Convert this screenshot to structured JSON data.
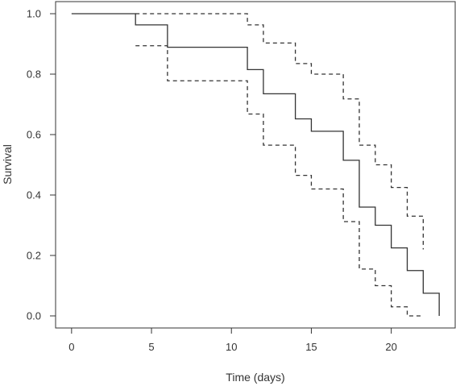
{
  "chart_data": {
    "type": "line",
    "title": "",
    "xlabel": "Time (days)",
    "ylabel": "Survival",
    "xlim": [
      -1,
      24
    ],
    "ylim": [
      -0.04,
      1.04
    ],
    "x_ticks": [
      0,
      5,
      10,
      15,
      20
    ],
    "x_tick_labels": [
      "0",
      "5",
      "10",
      "15",
      "20"
    ],
    "y_ticks": [
      0.0,
      0.2,
      0.4,
      0.6,
      0.8,
      1.0
    ],
    "y_tick_labels": [
      "0.0",
      "0.2",
      "0.4",
      "0.6",
      "0.8",
      "1.0"
    ],
    "grid": false,
    "legend": "none",
    "series": [
      {
        "style": "solid",
        "step": true,
        "color": "#333333",
        "x": [
          0,
          4,
          6,
          11,
          12,
          14,
          15,
          17,
          18,
          19,
          20,
          21,
          22,
          23,
          23
        ],
        "y": [
          1.0,
          0.963,
          0.889,
          0.815,
          0.735,
          0.652,
          0.611,
          0.515,
          0.36,
          0.3,
          0.225,
          0.15,
          0.075,
          0.075,
          0.0
        ]
      },
      {
        "style": "dashed",
        "step": true,
        "color": "#333333",
        "x": [
          4,
          11,
          12,
          14,
          15,
          17,
          18,
          19,
          20,
          21,
          22,
          22
        ],
        "y": [
          1.0,
          0.963,
          0.903,
          0.835,
          0.8,
          0.718,
          0.565,
          0.5,
          0.425,
          0.33,
          0.33,
          0.22
        ]
      },
      {
        "style": "dashed",
        "step": true,
        "color": "#333333",
        "x": [
          4,
          6,
          11,
          12,
          14,
          15,
          17,
          18,
          19,
          20,
          21,
          22
        ],
        "y": [
          0.894,
          0.778,
          0.668,
          0.565,
          0.465,
          0.42,
          0.312,
          0.155,
          0.1,
          0.03,
          0.0,
          0.0
        ]
      }
    ]
  }
}
